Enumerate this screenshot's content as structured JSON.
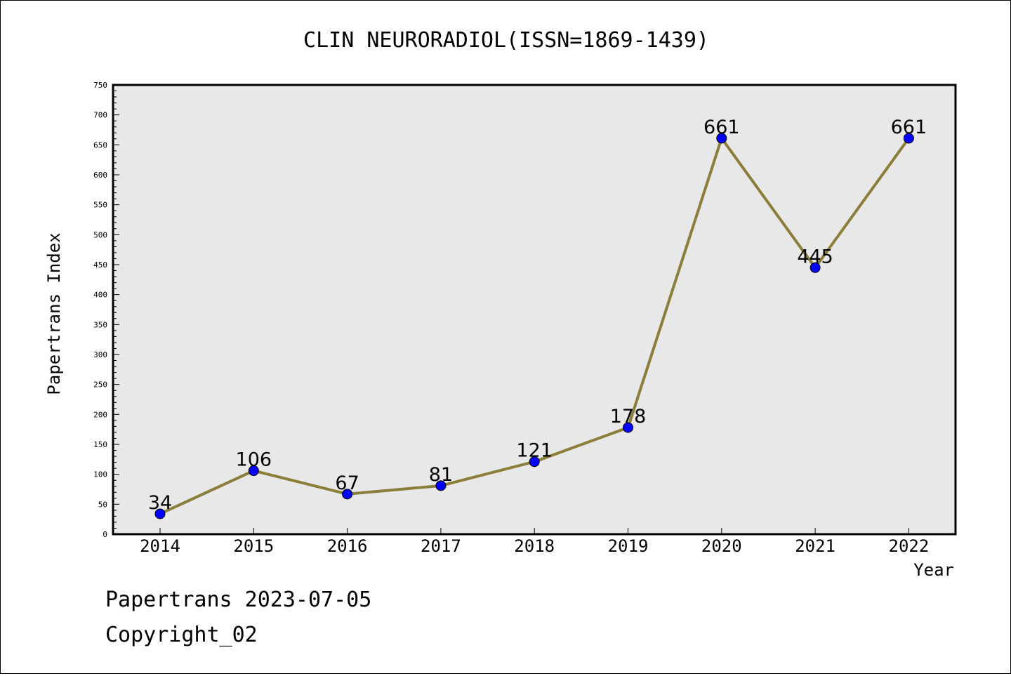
{
  "chart_data": {
    "type": "line",
    "title": "CLIN NEURORADIOL(ISSN=1869-1439)",
    "xlabel": "Year",
    "ylabel": "Papertrans Index",
    "categories": [
      "2014",
      "2015",
      "2016",
      "2017",
      "2018",
      "2019",
      "2020",
      "2021",
      "2022"
    ],
    "series": [
      {
        "values": [
          34,
          106,
          67,
          81,
          121,
          178,
          661,
          445,
          661
        ]
      }
    ],
    "ylim": [
      0,
      750
    ],
    "yticks": [
      0,
      50,
      100,
      150,
      200,
      250,
      300,
      350,
      400,
      450,
      500,
      550,
      600,
      650,
      700,
      750
    ],
    "grid": false,
    "line_color": "#8b7d3a",
    "marker_color": "#0000ff",
    "plot_background": "#e8e8e8"
  },
  "footer": {
    "line1": "Papertrans 2023-07-05",
    "line2": "Copyright_02"
  }
}
